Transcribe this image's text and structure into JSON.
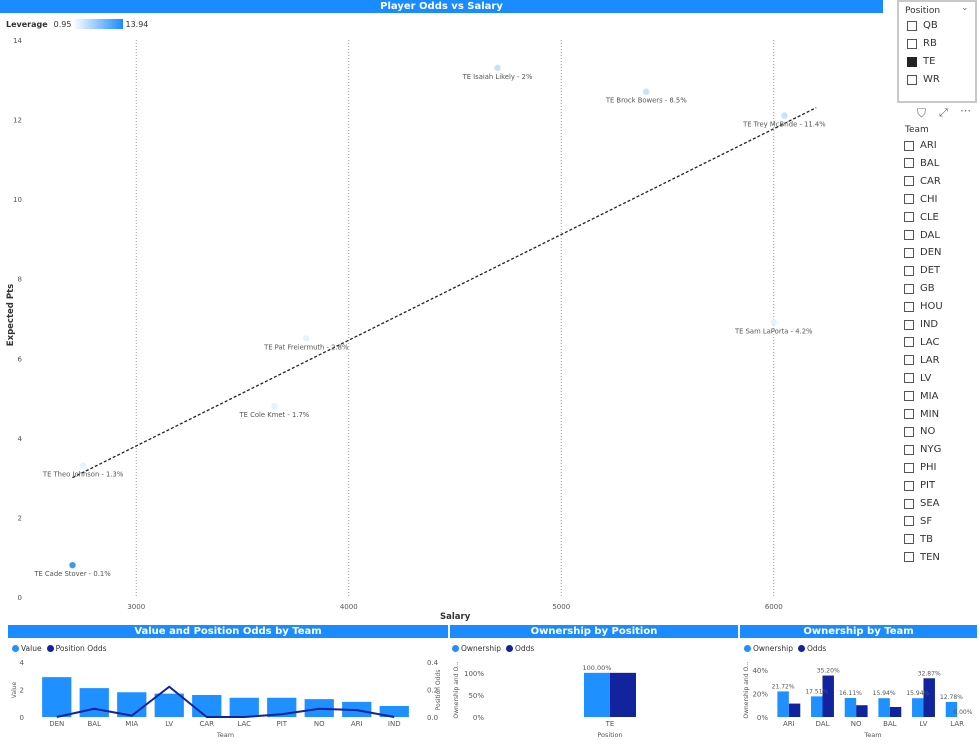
{
  "main_chart": {
    "title": "Player Odds vs Salary",
    "leverage_label": "Leverage",
    "leverage_min": "0.95",
    "leverage_max": "13.94",
    "xlabel": "Salary",
    "ylabel": "Expected Pts"
  },
  "chart_data": [
    {
      "type": "scatter",
      "title": "Player Odds vs Salary",
      "xlabel": "Salary",
      "ylabel": "Expected Pts",
      "xlim": [
        2500,
        6500
      ],
      "ylim": [
        0,
        14
      ],
      "xticks": [
        "3000",
        "4000",
        "5000",
        "6000"
      ],
      "yticks": [
        "0",
        "2",
        "4",
        "6",
        "8",
        "10",
        "12",
        "14"
      ],
      "points": [
        {
          "label": "TE Isaiah Likely - 2%",
          "x": 4700,
          "y": 13.3,
          "color": "#c6e2fa"
        },
        {
          "label": "TE Brock Bowers - 8.5%",
          "x": 5400,
          "y": 12.7,
          "color": "#c6e2fa"
        },
        {
          "label": "TE Trey McBride - 11.4%",
          "x": 6050,
          "y": 12.1,
          "color": "#c6e2fa"
        },
        {
          "label": "TE Sam LaPorta - 4.2%",
          "x": 6000,
          "y": 6.9,
          "color": "#e6f2fd"
        },
        {
          "label": "TE Pat Freiermuth - 2.8%",
          "x": 3800,
          "y": 6.5,
          "color": "#e6f2fd"
        },
        {
          "label": "TE Cole Kmet - 1.7%",
          "x": 3650,
          "y": 4.8,
          "color": "#e6f2fd"
        },
        {
          "label": "TE Theo Johnson - 1.3%",
          "x": 2750,
          "y": 3.3,
          "color": "#e6f2fd"
        },
        {
          "label": "TE Cade Stover - 0.1%",
          "x": 2700,
          "y": 0.8,
          "color": "#3a9cf0"
        }
      ],
      "trendline": {
        "x": [
          2700,
          6200
        ],
        "y": [
          3.0,
          12.3
        ]
      }
    },
    {
      "type": "bar",
      "title": "Value and Position Odds by Team",
      "xlabel": "Team",
      "ylabel": "Value",
      "y2label": "Position Odds",
      "categories": [
        "DEN",
        "BAL",
        "MIA",
        "LV",
        "CAR",
        "LAC",
        "PIT",
        "NO",
        "ARI",
        "IND"
      ],
      "yticks": [
        "0",
        "2",
        "4"
      ],
      "y2ticks": [
        "0.0",
        "0.2",
        "0.4"
      ],
      "series": [
        {
          "name": "Value",
          "values": [
            2.9,
            2.1,
            1.8,
            1.7,
            1.6,
            1.4,
            1.4,
            1.3,
            1.1,
            0.8
          ]
        },
        {
          "name": "Position Odds",
          "values": [
            0.0,
            0.06,
            0.01,
            0.22,
            0.0,
            0.0,
            0.02,
            0.06,
            0.05,
            0.0
          ]
        }
      ]
    },
    {
      "type": "bar",
      "title": "Ownership by Position",
      "xlabel": "Position",
      "ylabel": "Ownership and O...",
      "categories": [
        "TE"
      ],
      "yticks": [
        "0%",
        "50%",
        "100%"
      ],
      "series": [
        {
          "name": "Ownership",
          "values": [
            100.0
          ]
        },
        {
          "name": "Odds",
          "values": [
            100.0
          ]
        }
      ],
      "data_labels": [
        "100.00%"
      ]
    },
    {
      "type": "bar",
      "title": "Ownership by Team",
      "xlabel": "Team",
      "ylabel": "Ownership and O...",
      "categories": [
        "ARI",
        "DAL",
        "NO",
        "BAL",
        "LV",
        "LAR"
      ],
      "yticks": [
        "0%",
        "20%",
        "40%"
      ],
      "series": [
        {
          "name": "Ownership",
          "values": [
            21.72,
            17.51,
            16.11,
            15.94,
            15.94,
            12.78
          ]
        },
        {
          "name": "Odds",
          "values": [
            11.4,
            35.2,
            10.0,
            8.5,
            32.87,
            0.0
          ]
        }
      ],
      "data_labels": [
        "21.72%",
        "17.51%",
        "35.20%",
        "16.11%",
        "15.94%",
        "15.94%",
        "32.87%",
        "12.78%",
        "0.00%"
      ]
    }
  ],
  "position_slicer": {
    "title": "Position",
    "items": [
      {
        "label": "QB",
        "checked": false
      },
      {
        "label": "RB",
        "checked": false
      },
      {
        "label": "TE",
        "checked": true
      },
      {
        "label": "WR",
        "checked": false
      }
    ]
  },
  "team_slicer": {
    "title": "Team",
    "items": [
      "ARI",
      "BAL",
      "CAR",
      "CHI",
      "CLE",
      "DAL",
      "DEN",
      "DET",
      "GB",
      "HOU",
      "IND",
      "LAC",
      "LAR",
      "LV",
      "MIA",
      "MIN",
      "NO",
      "NYG",
      "PHI",
      "PIT",
      "SEA",
      "SF",
      "TB",
      "TEN"
    ]
  },
  "colors": {
    "accent": "#1a8cff",
    "bar_light": "#1e90ff",
    "bar_dark": "#12239e"
  },
  "icons": [
    "filter-icon",
    "focus-mode-icon",
    "more-options-icon",
    "chevron-down-icon"
  ]
}
